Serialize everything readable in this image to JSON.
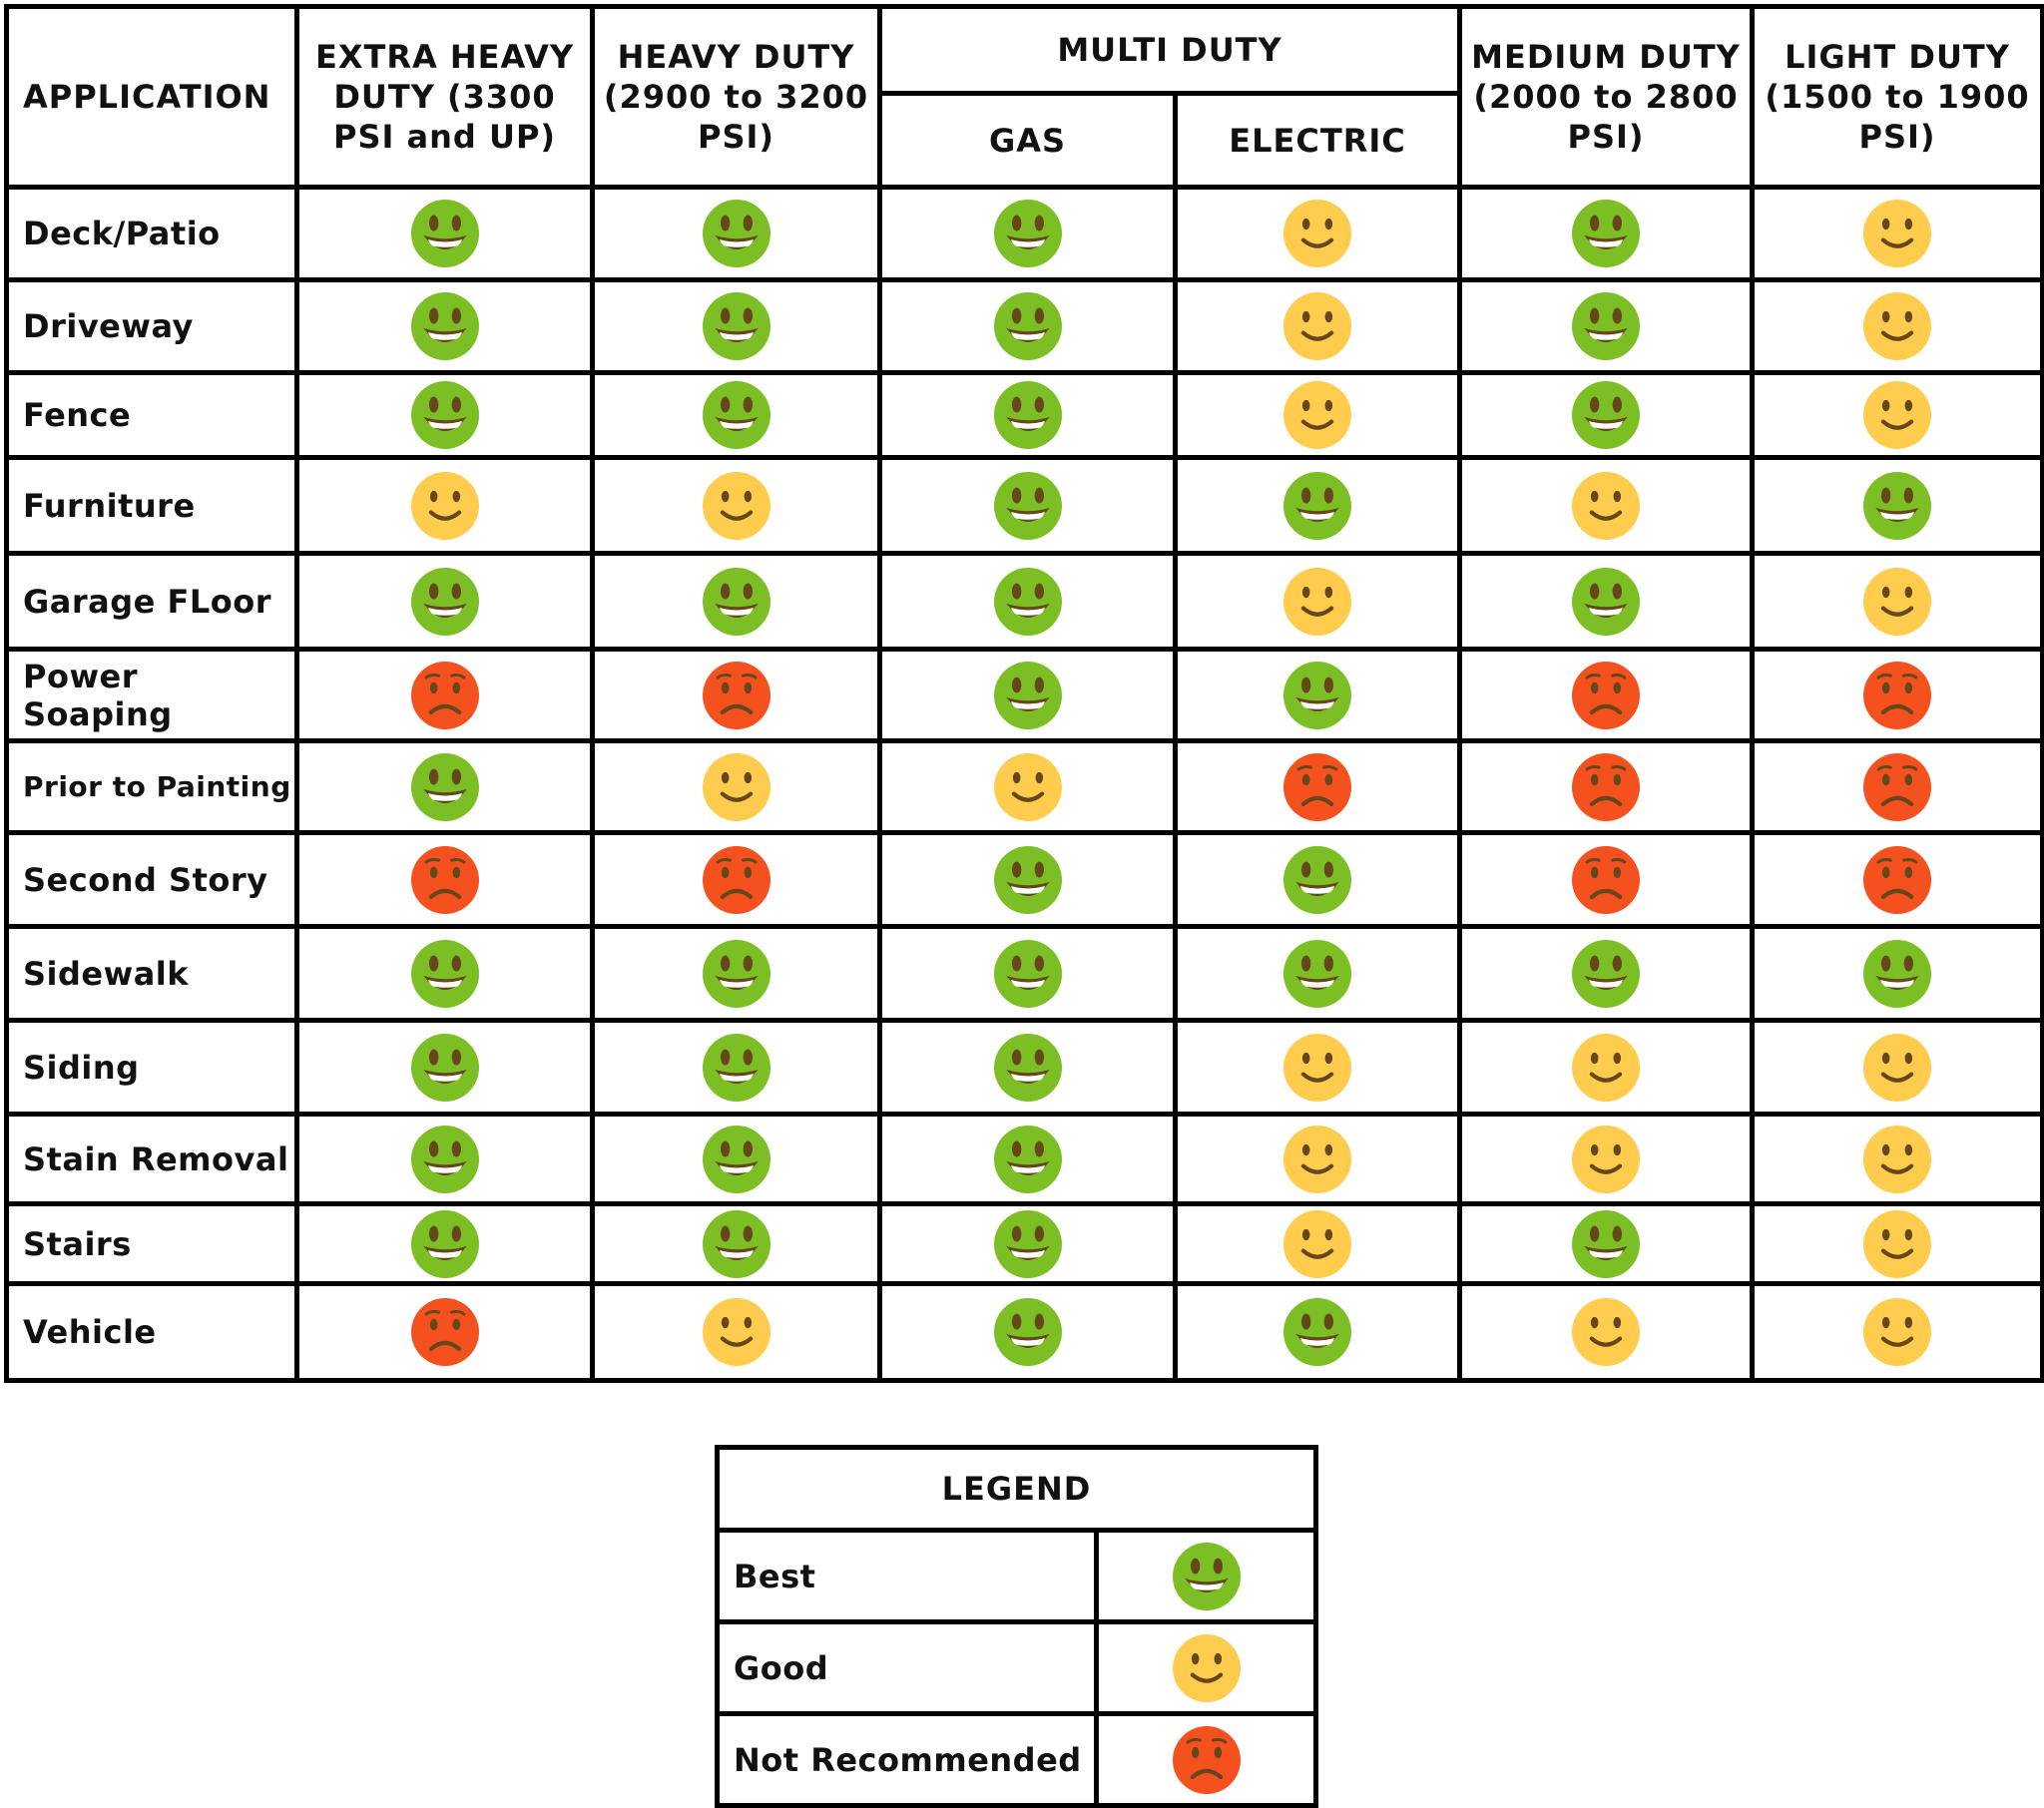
{
  "headers": {
    "application": "APPLICATION",
    "extra_heavy": "EXTRA HEAVY DUTY (3300 PSI and UP)",
    "heavy": "HEAVY DUTY (2900 to 3200 PSI)",
    "multi": "MULTI DUTY",
    "gas": "GAS",
    "electric": "ELECTRIC",
    "medium": "MEDIUM DUTY (2000 to 2800 PSI)",
    "light": "LIGHT DUTY (1500 to 1900 PSI)"
  },
  "rows": [
    {
      "app": "Deck/Patio",
      "ratings": [
        "best",
        "best",
        "best",
        "good",
        "best",
        "good"
      ]
    },
    {
      "app": "Driveway",
      "ratings": [
        "best",
        "best",
        "best",
        "good",
        "best",
        "good"
      ]
    },
    {
      "app": "Fence",
      "ratings": [
        "best",
        "best",
        "best",
        "good",
        "best",
        "good"
      ]
    },
    {
      "app": "Furniture",
      "ratings": [
        "good",
        "good",
        "best",
        "best",
        "good",
        "best"
      ]
    },
    {
      "app": "Garage FLoor",
      "ratings": [
        "best",
        "best",
        "best",
        "good",
        "best",
        "good"
      ]
    },
    {
      "app": "Power Soaping",
      "ratings": [
        "not",
        "not",
        "best",
        "best",
        "not",
        "not"
      ]
    },
    {
      "app": "Prior to Painting",
      "ratings": [
        "best",
        "good",
        "good",
        "not",
        "not",
        "not"
      ]
    },
    {
      "app": "Second Story",
      "ratings": [
        "not",
        "not",
        "best",
        "best",
        "not",
        "not"
      ]
    },
    {
      "app": "Sidewalk",
      "ratings": [
        "best",
        "best",
        "best",
        "best",
        "best",
        "best"
      ]
    },
    {
      "app": "Siding",
      "ratings": [
        "best",
        "best",
        "best",
        "good",
        "good",
        "good"
      ]
    },
    {
      "app": "Stain Removal",
      "ratings": [
        "best",
        "best",
        "best",
        "good",
        "good",
        "good"
      ]
    },
    {
      "app": "Stairs",
      "ratings": [
        "best",
        "best",
        "best",
        "good",
        "best",
        "good"
      ]
    },
    {
      "app": "Vehicle",
      "ratings": [
        "not",
        "good",
        "best",
        "best",
        "good",
        "good"
      ]
    }
  ],
  "legend": {
    "title": "LEGEND",
    "items": [
      {
        "label": "Best",
        "rating": "best"
      },
      {
        "label": "Good",
        "rating": "good"
      },
      {
        "label": "Not Recommended",
        "rating": "not"
      }
    ]
  },
  "icons": {
    "best": "grinning-face-icon",
    "good": "slightly-smiling-face-icon",
    "not": "frowning-face-icon"
  },
  "colors": {
    "best": "#7cbf25",
    "good": "#ffcc4d",
    "not": "#f4511e",
    "feature": "#65471b"
  }
}
